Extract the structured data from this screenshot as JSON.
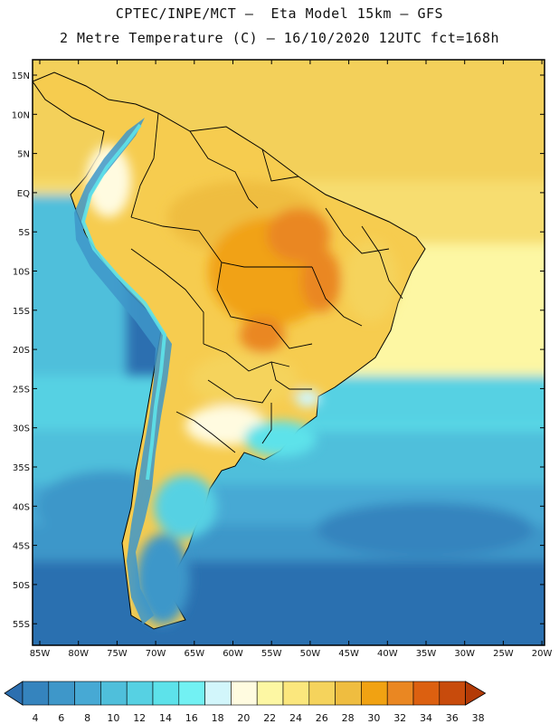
{
  "header": {
    "line1": "CPTEC/INPE/MCT –  Eta Model 15km – GFS",
    "line2": "2 Metre Temperature (C) – 16/10/2020 12UTC fct=168h"
  },
  "map": {
    "lat_labels": [
      "15N",
      "10N",
      "5N",
      "EQ",
      "5S",
      "10S",
      "15S",
      "20S",
      "25S",
      "30S",
      "35S",
      "40S",
      "45S",
      "50S",
      "55S"
    ],
    "lon_labels": [
      "85W",
      "80W",
      "75W",
      "70W",
      "65W",
      "60W",
      "55W",
      "50W",
      "45W",
      "40W",
      "35W",
      "30W",
      "25W",
      "20W"
    ]
  },
  "colorbar": {
    "levels": [
      "4",
      "6",
      "8",
      "10",
      "12",
      "14",
      "16",
      "18",
      "20",
      "22",
      "24",
      "26",
      "28",
      "30",
      "32",
      "34",
      "36",
      "38"
    ],
    "colors": [
      "#2c6fb0",
      "#3584be",
      "#3e97c9",
      "#47a9d4",
      "#4fbfdb",
      "#56d1e3",
      "#5de2ea",
      "#72f1f3",
      "#d2f6fb",
      "#fffbe0",
      "#fdf7a3",
      "#fbe77d",
      "#f5d35c",
      "#efbd40",
      "#f1a212",
      "#ea8722",
      "#dc6010",
      "#c84b0c",
      "#b33a06"
    ]
  },
  "colors": {
    "ocean_tropical": "#f3d05a",
    "ocean_south": "#2c6fb0",
    "border": "#000000"
  }
}
